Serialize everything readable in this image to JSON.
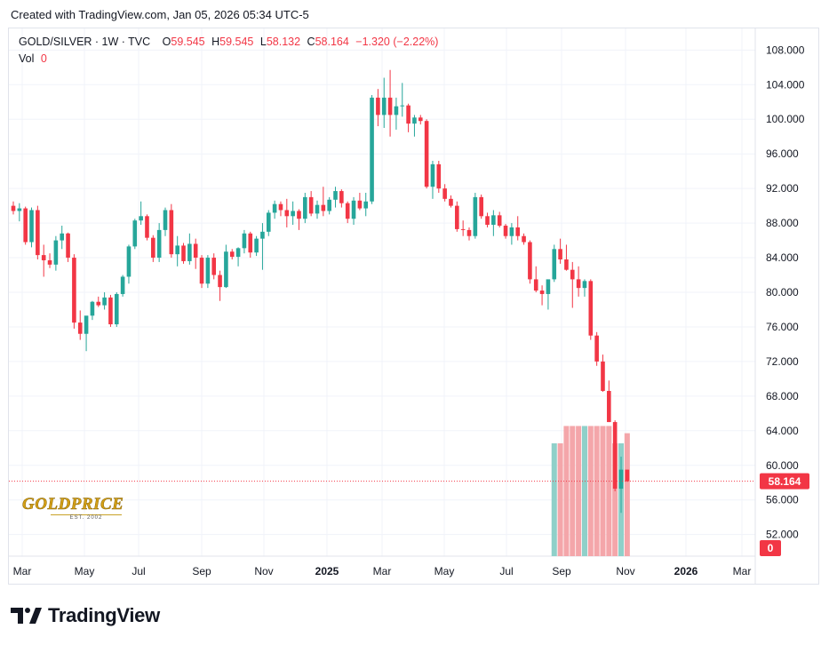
{
  "header": {
    "created": "Created with TradingView.com, Jan 05, 2026 05:34 UTC-5"
  },
  "legend": {
    "symbol": "GOLD/SILVER · 1W · TVC",
    "o_label": "O",
    "o_value": "59.545",
    "h_label": "H",
    "h_value": "59.545",
    "l_label": "L",
    "l_value": "58.132",
    "c_label": "C",
    "c_value": "58.164",
    "change": "−1.320 (−2.22%)",
    "vol_label": "Vol",
    "vol_value": "0"
  },
  "price_tag": "58.164",
  "vol_tag": "0",
  "watermark": {
    "title": "GOLDPRICE",
    "subtitle": "EST. 2002"
  },
  "brand": {
    "name": "TradingView"
  },
  "colors": {
    "up": "#26a69a",
    "down": "#f23645",
    "vol_up": "#8fd0c9",
    "vol_down": "#f4a6aa",
    "grid": "#f0f3fa"
  },
  "chart_data": {
    "type": "candlestick",
    "y_axis": {
      "ticks": [
        "108.000",
        "104.000",
        "100.000",
        "96.000",
        "92.000",
        "88.000",
        "84.000",
        "80.000",
        "76.000",
        "72.000",
        "68.000",
        "64.000",
        "60.000",
        "56.000",
        "52.000"
      ],
      "range": [
        49.5,
        110.5
      ],
      "position": "right"
    },
    "x_axis": {
      "ticks": [
        "Mar",
        "May",
        "Jul",
        "Sep",
        "Nov",
        "2025",
        "Mar",
        "May",
        "Jul",
        "Sep",
        "Nov",
        "2026",
        "Mar"
      ],
      "bold": [
        "2025",
        "2026"
      ]
    },
    "last_price": 58.164,
    "candles": [
      [
        90.0,
        90.5,
        89.0,
        89.4
      ],
      [
        89.4,
        90.3,
        88.2,
        89.7
      ],
      [
        89.7,
        89.9,
        85.5,
        85.8
      ],
      [
        85.8,
        89.8,
        85.2,
        89.5
      ],
      [
        89.5,
        90.0,
        83.8,
        84.3
      ],
      [
        84.3,
        85.5,
        81.8,
        83.7
      ],
      [
        83.7,
        84.5,
        82.8,
        83.2
      ],
      [
        83.2,
        86.5,
        82.5,
        86.0
      ],
      [
        86.0,
        87.7,
        85.0,
        86.8
      ],
      [
        86.8,
        86.9,
        83.5,
        84.0
      ],
      [
        84.0,
        84.4,
        75.8,
        76.5
      ],
      [
        76.5,
        77.9,
        74.5,
        75.2
      ],
      [
        75.2,
        76.8,
        73.2,
        77.3
      ],
      [
        77.3,
        79.0,
        76.8,
        78.9
      ],
      [
        78.9,
        79.5,
        78.3,
        78.5
      ],
      [
        78.5,
        80.0,
        78.0,
        79.4
      ],
      [
        79.4,
        79.7,
        76.0,
        76.3
      ],
      [
        76.3,
        80.0,
        76.0,
        79.8
      ],
      [
        79.8,
        82.0,
        79.5,
        81.8
      ],
      [
        81.8,
        85.5,
        81.0,
        85.3
      ],
      [
        85.3,
        88.5,
        85.0,
        88.3
      ],
      [
        88.3,
        90.5,
        87.8,
        88.8
      ],
      [
        88.8,
        89.0,
        86.0,
        86.3
      ],
      [
        86.3,
        86.6,
        83.5,
        84.0
      ],
      [
        84.0,
        88.0,
        83.5,
        87.2
      ],
      [
        87.2,
        89.8,
        86.5,
        89.5
      ],
      [
        89.5,
        90.2,
        84.0,
        84.4
      ],
      [
        84.4,
        86.5,
        83.0,
        85.4
      ],
      [
        85.4,
        85.7,
        83.3,
        83.6
      ],
      [
        83.6,
        86.8,
        83.2,
        85.6
      ],
      [
        85.6,
        86.2,
        82.7,
        84.0
      ],
      [
        84.0,
        84.3,
        80.5,
        81.0
      ],
      [
        81.0,
        84.3,
        80.5,
        84.0
      ],
      [
        84.0,
        84.5,
        81.5,
        82.0
      ],
      [
        82.0,
        82.5,
        79.0,
        80.6
      ],
      [
        80.6,
        85.5,
        80.5,
        84.7
      ],
      [
        84.7,
        85.0,
        83.8,
        84.1
      ],
      [
        84.1,
        85.2,
        83.0,
        85.1
      ],
      [
        85.1,
        87.2,
        84.5,
        86.8
      ],
      [
        86.8,
        87.0,
        84.0,
        84.6
      ],
      [
        84.6,
        86.5,
        84.2,
        86.2
      ],
      [
        86.2,
        88.0,
        82.6,
        87.0
      ],
      [
        87.0,
        89.5,
        86.5,
        89.2
      ],
      [
        89.2,
        90.6,
        88.5,
        90.2
      ],
      [
        90.2,
        90.5,
        88.8,
        89.5
      ],
      [
        89.5,
        90.8,
        87.5,
        88.8
      ],
      [
        88.8,
        90.5,
        87.8,
        89.4
      ],
      [
        89.4,
        89.6,
        87.2,
        88.5
      ],
      [
        88.5,
        91.5,
        88.0,
        91.0
      ],
      [
        91.0,
        91.7,
        88.8,
        89.1
      ],
      [
        89.1,
        90.6,
        88.5,
        90.1
      ],
      [
        90.1,
        92.2,
        88.8,
        89.4
      ],
      [
        89.4,
        91.0,
        89.0,
        90.7
      ],
      [
        90.7,
        92.2,
        89.8,
        91.7
      ],
      [
        91.7,
        91.9,
        89.8,
        90.3
      ],
      [
        90.3,
        90.5,
        88.0,
        88.5
      ],
      [
        88.5,
        91.0,
        87.8,
        90.6
      ],
      [
        90.6,
        91.5,
        89.5,
        89.7
      ],
      [
        89.7,
        91.5,
        88.8,
        90.5
      ],
      [
        90.5,
        102.8,
        90.2,
        102.5
      ],
      [
        102.5,
        103.5,
        99.2,
        100.5
      ],
      [
        100.5,
        104.8,
        99.0,
        102.5
      ],
      [
        102.5,
        105.7,
        98.0,
        100.5
      ],
      [
        100.5,
        102.5,
        98.8,
        101.5
      ],
      [
        101.5,
        104.2,
        100.3,
        101.6
      ],
      [
        101.6,
        101.8,
        98.5,
        99.5
      ],
      [
        99.5,
        100.5,
        98.0,
        100.2
      ],
      [
        100.2,
        100.5,
        99.4,
        99.8
      ],
      [
        99.8,
        100.0,
        92.0,
        92.2
      ],
      [
        92.2,
        95.2,
        90.8,
        94.8
      ],
      [
        94.8,
        95.2,
        91.5,
        92.0
      ],
      [
        92.0,
        92.5,
        90.5,
        90.8
      ],
      [
        90.8,
        91.2,
        89.8,
        90.0
      ],
      [
        90.0,
        90.5,
        87.0,
        87.3
      ],
      [
        87.3,
        88.3,
        86.5,
        87.2
      ],
      [
        87.2,
        87.5,
        86.0,
        86.5
      ],
      [
        86.5,
        91.5,
        86.2,
        91.0
      ],
      [
        91.0,
        91.3,
        88.5,
        88.8
      ],
      [
        88.8,
        89.2,
        87.5,
        87.8
      ],
      [
        87.8,
        89.5,
        86.5,
        88.9
      ],
      [
        88.9,
        89.3,
        87.5,
        87.7
      ],
      [
        87.7,
        87.9,
        86.2,
        86.5
      ],
      [
        86.5,
        88.0,
        85.5,
        87.5
      ],
      [
        87.5,
        88.8,
        86.0,
        86.5
      ],
      [
        86.5,
        86.8,
        85.5,
        85.8
      ],
      [
        85.8,
        86.0,
        81.0,
        81.5
      ],
      [
        81.5,
        83.0,
        80.0,
        80.2
      ],
      [
        80.2,
        80.8,
        78.5,
        79.8
      ],
      [
        79.8,
        81.0,
        78.0,
        81.5
      ],
      [
        81.5,
        85.5,
        81.2,
        85.0
      ],
      [
        85.0,
        86.2,
        83.3,
        83.8
      ],
      [
        83.8,
        85.5,
        82.5,
        82.6
      ],
      [
        82.6,
        83.5,
        78.2,
        81.5
      ],
      [
        81.5,
        83.0,
        79.5,
        80.5
      ],
      [
        80.5,
        81.5,
        79.5,
        81.3
      ],
      [
        81.3,
        81.5,
        74.5,
        75.0
      ],
      [
        75.0,
        75.4,
        71.5,
        72.0
      ],
      [
        72.0,
        72.8,
        68.5,
        68.6
      ],
      [
        68.6,
        69.8,
        65.0,
        65.0
      ],
      [
        65.0,
        65.2,
        57.0,
        57.3
      ],
      [
        57.3,
        61.0,
        54.5,
        59.5
      ],
      [
        59.5,
        59.5,
        58.1,
        58.164
      ]
    ],
    "volume": [
      0,
      0,
      0,
      0,
      0,
      0,
      0,
      0,
      0,
      0,
      0,
      0,
      0,
      0,
      0,
      0,
      0,
      0,
      0,
      0,
      0,
      0,
      0,
      0,
      0,
      0,
      0,
      0,
      0,
      0,
      0,
      0,
      0,
      0,
      0,
      0,
      0,
      0,
      0,
      0,
      0,
      0,
      0,
      0,
      0,
      0,
      0,
      0,
      0,
      0,
      0,
      0,
      0,
      0,
      0,
      0,
      0,
      0,
      0,
      0,
      0,
      0,
      0,
      0,
      0,
      0,
      0,
      0,
      0,
      0,
      0,
      0,
      0,
      0,
      0,
      0,
      0,
      0,
      0,
      0,
      0,
      0,
      0,
      0,
      0,
      0,
      0,
      0,
      0,
      0.78,
      0.78,
      0.9,
      0.9,
      0.9,
      0.9,
      0.9,
      0.9,
      0.9,
      0.9,
      0.78,
      0.78,
      0.85,
      0
    ]
  }
}
